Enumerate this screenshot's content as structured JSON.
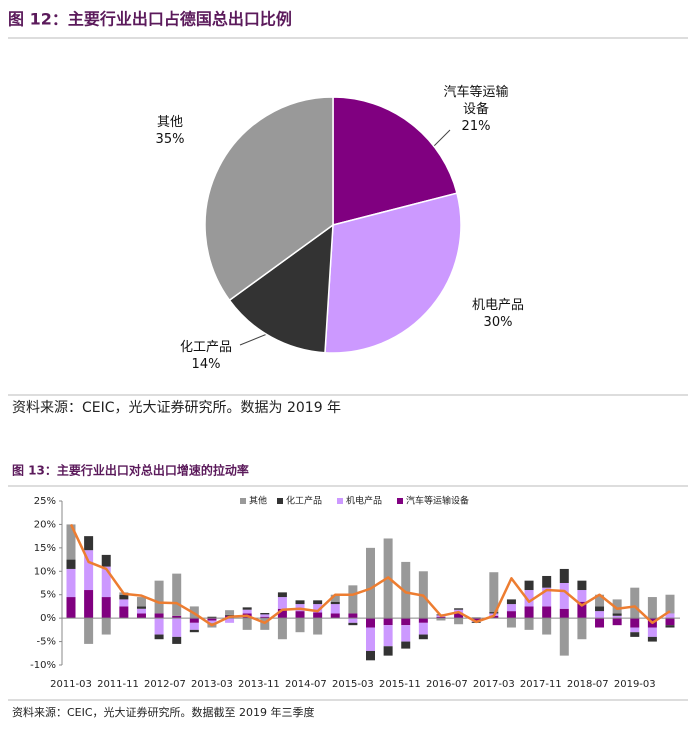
{
  "chart_data": [
    {
      "type": "pie",
      "title": "图 12：主要行业出口占德国总出口比例",
      "categories": [
        "汽车等运输设备",
        "机电产品",
        "化工产品",
        "其他"
      ],
      "values": [
        21,
        30,
        14,
        35
      ],
      "value_labels": [
        "21%",
        "30%",
        "14%",
        "35%"
      ],
      "colors": [
        "#800080",
        "#cc99ff",
        "#333333",
        "#999999"
      ],
      "source": "资料来源：CEIC，光大证券研究所。数据为 2019 年"
    },
    {
      "type": "bar",
      "stacked": true,
      "title": "图 13：主要行业出口对总出口增速的拉动率",
      "legend": "top",
      "x": [
        "2011-03",
        "2011-06",
        "2011-09",
        "2011-12",
        "2012-03",
        "2012-06",
        "2012-09",
        "2012-12",
        "2013-03",
        "2013-06",
        "2013-09",
        "2013-12",
        "2014-03",
        "2014-06",
        "2014-09",
        "2014-12",
        "2015-03",
        "2015-06",
        "2015-09",
        "2015-12",
        "2016-03",
        "2016-06",
        "2016-09",
        "2016-12",
        "2017-03",
        "2017-06",
        "2017-09",
        "2017-12",
        "2018-03",
        "2018-06",
        "2018-09",
        "2018-12",
        "2019-03",
        "2019-06",
        "2019-09"
      ],
      "series": [
        {
          "name": "其他",
          "color": "#999999",
          "values": [
            7.5,
            -5.5,
            -3.5,
            0.5,
            2,
            7,
            9,
            2.5,
            -1,
            1,
            -2.5,
            -2.5,
            -4.5,
            -3,
            -3.5,
            1.5,
            6,
            15,
            17,
            12,
            10,
            -0.5,
            -1.3,
            0.2,
            8.5,
            -2,
            -2.5,
            -3.5,
            -8,
            -4.5,
            2.5,
            3,
            6.5,
            4.5,
            4
          ]
        },
        {
          "name": "化工产品",
          "color": "#333333",
          "values": [
            2,
            3,
            2.5,
            1,
            0.5,
            -1,
            -1.5,
            -0.5,
            0.3,
            0.2,
            0.5,
            0.3,
            1,
            0.8,
            0.8,
            0.5,
            -0.5,
            -2,
            -2,
            -1.5,
            -1,
            0.2,
            0.3,
            -0.2,
            0.3,
            1,
            2,
            2.5,
            3,
            2,
            1,
            0.5,
            -1,
            -1,
            -0.5
          ]
        },
        {
          "name": "机电产品",
          "color": "#cc99ff",
          "values": [
            6,
            8.5,
            6.5,
            1.5,
            1,
            -3.5,
            -4,
            -1.5,
            -0.5,
            -1,
            0.8,
            0.5,
            2.5,
            1.5,
            1.8,
            2,
            -1,
            -5,
            -4.5,
            -3.5,
            -2.5,
            0.3,
            0.8,
            -0.3,
            0.5,
            1.5,
            3.5,
            4,
            5.5,
            2.5,
            1.5,
            0.5,
            -1,
            -2,
            1
          ]
        },
        {
          "name": "汽车等运输设备",
          "color": "#800080",
          "values": [
            4.5,
            6,
            4.5,
            2.5,
            1,
            1,
            0.5,
            -1,
            -0.5,
            0.5,
            1,
            0.3,
            2,
            1.5,
            1.2,
            1,
            1,
            -2,
            -1.5,
            -1.5,
            -1,
            0.3,
            1,
            -0.5,
            0.5,
            1.5,
            2.5,
            2.5,
            2,
            3.5,
            -2,
            -1.5,
            -2,
            -2,
            -1.5
          ]
        },
        {
          "type": "line",
          "color": "#ed7d31",
          "values": [
            20,
            12,
            10.5,
            5.2,
            4.8,
            3.3,
            3.2,
            1,
            -1.5,
            0.3,
            0.5,
            -1,
            1.8,
            2,
            1.5,
            5,
            5,
            6.3,
            8.7,
            5.5,
            4.8,
            0.5,
            1.3,
            -0.8,
            0.5,
            8.5,
            3.5,
            6,
            5.8,
            2.7,
            5,
            2,
            2.5,
            -1,
            1.5
          ]
        }
      ],
      "ylim": [
        -10,
        25
      ],
      "yticks": [
        {
          "value": 25,
          "label": "25%"
        },
        {
          "value": 20,
          "label": "20%"
        },
        {
          "value": 15,
          "label": "15%"
        },
        {
          "value": 10,
          "label": "10%"
        },
        {
          "value": 5,
          "label": "5%"
        },
        {
          "value": 0,
          "label": "0%"
        },
        {
          "value": -5,
          "label": "-5%"
        },
        {
          "value": -10,
          "label": "-10%"
        }
      ],
      "xticks": [
        "2011-03",
        "2011-11",
        "2012-07",
        "2013-03",
        "2013-11",
        "2014-07",
        "2015-03",
        "2015-11",
        "2016-07",
        "2017-03",
        "2017-11",
        "2018-07",
        "2019-03"
      ],
      "grid": false,
      "source": "资料来源：CEIC，光大证券研究所。数据截至 2019 年三季度"
    }
  ]
}
